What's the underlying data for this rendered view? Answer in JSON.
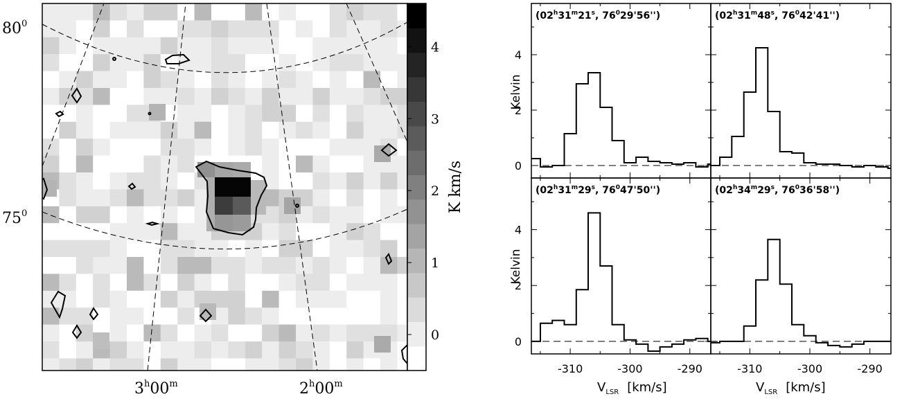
{
  "map": {
    "dec_labels": [
      {
        "text": "80",
        "sup": "0"
      },
      {
        "text": "75",
        "sup": "0"
      }
    ],
    "ra_labels": [
      {
        "h": "3",
        "m": "00"
      },
      {
        "h": "2",
        "m": "00"
      }
    ],
    "ra_units": {
      "h": "h",
      "m": "m"
    },
    "colorbar": {
      "label": "K km/s",
      "ticks": [
        "0",
        "1",
        "2",
        "3",
        "4"
      ],
      "range": [
        -0.5,
        4.6
      ],
      "levels": 15
    }
  },
  "spectra": {
    "xlabel_main": "V",
    "xlabel_sub": "LSR",
    "xlabel_unit": "[km/s]",
    "ylabel": "Kelvin",
    "x_ticks": [
      "-310",
      "-300",
      "-290"
    ],
    "y_ticks": [
      "0",
      "2",
      "4"
    ]
  },
  "chart_data": [
    {
      "type": "heatmap",
      "title": "",
      "xlabel": "",
      "ylabel": "",
      "zlabel": "K km/s",
      "zlim": [
        -0.5,
        4.6
      ],
      "colormap": "grayscale (white = low, black = high)",
      "grid": false,
      "legend": "colorbar at right",
      "peak_value": 4.5,
      "x_ticks": [
        "3h00m",
        "2h00m"
      ],
      "y_ticks": [
        "75°",
        "80°"
      ]
    },
    {
      "type": "line",
      "style": "histogram-step",
      "title": "(02h31m21s, 76°29'56\")",
      "label_parts": {
        "h": "02",
        "m": "31",
        "s": "21",
        "deg": "76",
        "min": "29",
        "sec": "56"
      },
      "xlabel": "V_LSR [km/s]",
      "ylabel": "Kelvin",
      "xlim": [
        -316.5,
        -286.5
      ],
      "ylim": [
        -0.45,
        5.85
      ],
      "x": [
        -316,
        -314,
        -312,
        -310,
        -308,
        -306,
        -304,
        -302,
        -300,
        -298,
        -296,
        -294,
        -292,
        -290,
        -288,
        -286
      ],
      "y": [
        0.25,
        -0.05,
        0.0,
        1.15,
        2.95,
        3.35,
        2.1,
        0.9,
        0.1,
        0.3,
        0.15,
        0.1,
        0.05,
        0.1,
        -0.05,
        0.05
      ],
      "baseline": 0
    },
    {
      "type": "line",
      "style": "histogram-step",
      "title": "(02h31m48s, 76°42'41\")",
      "label_parts": {
        "h": "02",
        "m": "31",
        "s": "48",
        "deg": "76",
        "min": "42",
        "sec": "41"
      },
      "xlabel": "V_LSR [km/s]",
      "ylabel": "",
      "xlim": [
        -316.5,
        -286.5
      ],
      "ylim": [
        -0.45,
        5.85
      ],
      "x": [
        -316,
        -314,
        -312,
        -310,
        -308,
        -306,
        -304,
        -302,
        -300,
        -298,
        -296,
        -294,
        -292,
        -290,
        -288,
        -286
      ],
      "y": [
        0.0,
        0.3,
        1.05,
        2.65,
        4.25,
        1.95,
        0.5,
        0.45,
        0.1,
        0.05,
        0.05,
        0.0,
        -0.05,
        0.0,
        -0.05,
        -0.1
      ],
      "baseline": 0
    },
    {
      "type": "line",
      "style": "histogram-step",
      "title": "(02h31m29s, 76°47'50\")",
      "label_parts": {
        "h": "02",
        "m": "31",
        "s": "29",
        "deg": "76",
        "min": "47",
        "sec": "50"
      },
      "xlabel": "V_LSR [km/s]",
      "ylabel": "Kelvin",
      "xlim": [
        -316.5,
        -286.5
      ],
      "ylim": [
        -0.45,
        5.85
      ],
      "x": [
        -316,
        -314,
        -312,
        -310,
        -308,
        -306,
        -304,
        -302,
        -300,
        -298,
        -296,
        -294,
        -292,
        -290,
        -288,
        -286
      ],
      "y": [
        0.0,
        0.65,
        0.75,
        0.6,
        1.85,
        4.6,
        2.7,
        0.6,
        0.05,
        -0.1,
        -0.35,
        -0.2,
        -0.1,
        0.05,
        0.1,
        0.0
      ],
      "baseline": 0
    },
    {
      "type": "line",
      "style": "histogram-step",
      "title": "(02h34m29s, 76°36'58\")",
      "label_parts": {
        "h": "02",
        "m": "34",
        "s": "29",
        "deg": "76",
        "min": "36",
        "sec": "58"
      },
      "xlabel": "V_LSR [km/s]",
      "ylabel": "",
      "xlim": [
        -316.5,
        -286.5
      ],
      "ylim": [
        -0.45,
        5.85
      ],
      "x": [
        -316,
        -314,
        -312,
        -310,
        -308,
        -306,
        -304,
        -302,
        -300,
        -298,
        -296,
        -294,
        -292,
        -290,
        -288,
        -286
      ],
      "y": [
        -0.05,
        0.0,
        0.0,
        0.55,
        2.2,
        3.65,
        2.05,
        0.6,
        0.2,
        -0.05,
        -0.15,
        -0.2,
        -0.1,
        0.0,
        0.0,
        0.0
      ],
      "baseline": 0
    }
  ]
}
